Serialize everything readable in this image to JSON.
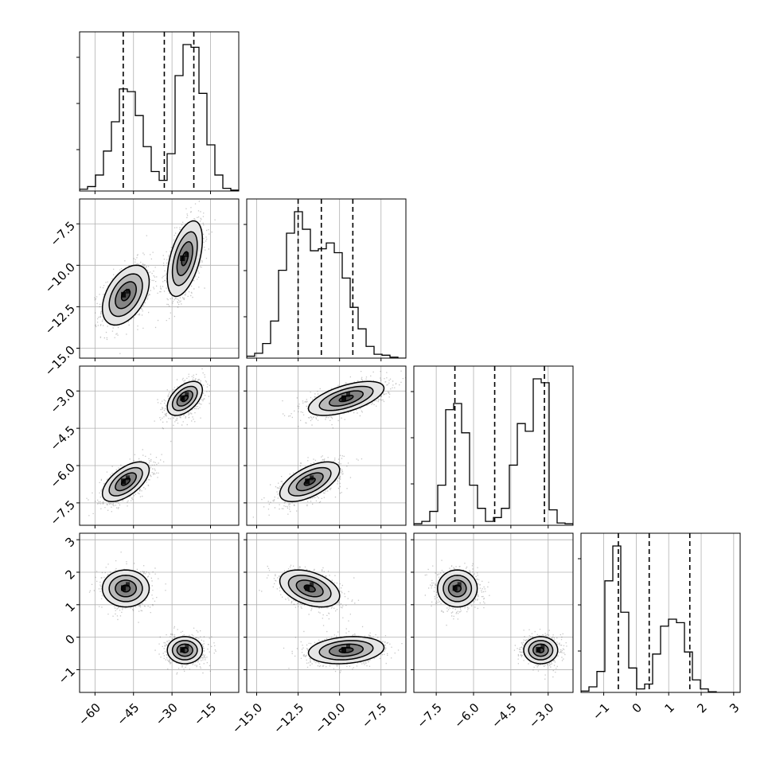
{
  "chart_data": {
    "type": "corner",
    "description_source": "corner plot of 4 parameters; dashed lines mark quantiles",
    "parameters": [
      {
        "range": [
          -66,
          -4
        ],
        "ticks": [
          -60,
          -45,
          -30,
          -15
        ],
        "tick_labels": [
          "−60",
          "−45",
          "−30",
          "−15"
        ],
        "quantiles": [
          -49.0,
          -33.0,
          -21.5
        ],
        "hist_bins_start": -66,
        "hist_bin_width": 3.1,
        "hist_counts": [
          2,
          5,
          18,
          45,
          78,
          115,
          112,
          85,
          50,
          22,
          12,
          42,
          130,
          165,
          162,
          110,
          52,
          18,
          3,
          1
        ]
      },
      {
        "range": [
          -15.6,
          -6.0
        ],
        "ticks": [
          -15.0,
          -12.5,
          -10.0,
          -7.5
        ],
        "tick_labels": [
          "−15.0",
          "−12.5",
          "−10.0",
          "−7.5"
        ],
        "quantiles": [
          -12.5,
          -11.1,
          -9.2
        ],
        "hist_bins_start": -15.6,
        "hist_bin_width": 0.48,
        "hist_counts": [
          2,
          5,
          15,
          38,
          90,
          128,
          150,
          132,
          110,
          112,
          118,
          108,
          82,
          52,
          30,
          12,
          4,
          3,
          1,
          0
        ]
      },
      {
        "range": [
          -8.4,
          -2.0
        ],
        "ticks": [
          -7.5,
          -6.0,
          -4.5,
          -3.0
        ],
        "tick_labels": [
          "−7.5",
          "−6.0",
          "−4.5",
          "−3.0"
        ],
        "quantiles": [
          -6.75,
          -5.15,
          -3.15
        ],
        "hist_bins_start": -8.4,
        "hist_bin_width": 0.32,
        "hist_counts": [
          2,
          5,
          18,
          52,
          150,
          158,
          120,
          52,
          22,
          5,
          10,
          22,
          78,
          132,
          122,
          190,
          185,
          20,
          3,
          2
        ]
      },
      {
        "range": [
          -1.7,
          3.2
        ],
        "ticks": [
          -1,
          0,
          1,
          2,
          3
        ],
        "tick_labels": [
          "−1",
          "0",
          "1",
          "2",
          "3"
        ],
        "quantiles": [
          -0.55,
          0.4,
          1.65
        ],
        "hist_bins_start": -1.7,
        "hist_bin_width": 0.245,
        "hist_counts": [
          2,
          8,
          30,
          160,
          210,
          115,
          35,
          5,
          12,
          55,
          95,
          105,
          100,
          58,
          18,
          5,
          1,
          0,
          0,
          0
        ]
      }
    ],
    "modes": [
      {
        "center": [
          -48,
          -11.8,
          -6.65,
          1.5
        ],
        "sigma": [
          4.8,
          0.95,
          0.42,
          0.3
        ],
        "corr": [
          [
            1,
            0.45,
            0.6,
            0
          ],
          [
            0.45,
            1,
            0.6,
            -0.4
          ],
          [
            0.6,
            0.6,
            1,
            0
          ],
          [
            0,
            -0.4,
            0,
            1
          ]
        ]
      },
      {
        "center": [
          -25,
          -9.6,
          -3.3,
          -0.4
        ],
        "sigma": [
          3.6,
          1.2,
          0.36,
          0.22
        ],
        "corr": [
          [
            1,
            0.5,
            0.5,
            0
          ],
          [
            0.5,
            1,
            0.6,
            0.2
          ],
          [
            0.5,
            0.6,
            1,
            0
          ],
          [
            0,
            0.2,
            0,
            1
          ]
        ]
      }
    ],
    "hist_max_fraction": 0.92,
    "grid": true,
    "quantile_line_style": "dashed",
    "contour_levels": 4,
    "colors": {
      "line": "#000000",
      "grid": "#b0b0b0",
      "points": "#333333",
      "density": "#000000"
    }
  }
}
